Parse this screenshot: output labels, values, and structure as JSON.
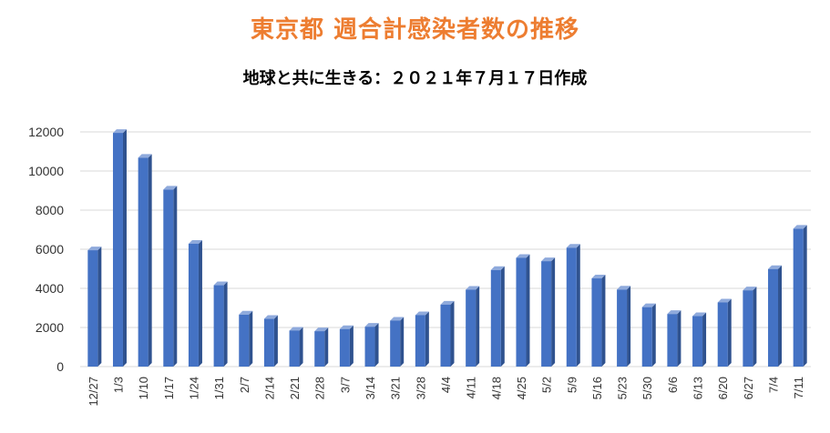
{
  "title": "東京都 週合計感染者数の推移",
  "subtitle": "地球と共に生きる：２０２１年７月１７日作成",
  "colors": {
    "title": "#ed7d31",
    "bar_front": "#4472c4",
    "bar_side": "#2f528f",
    "bar_top": "#8faadc",
    "grid": "#d9d9d9"
  },
  "chart_data": {
    "type": "bar",
    "title": "東京都 週合計感染者数の推移",
    "subtitle": "地球と共に生きる：２０２１年７月１７日作成",
    "xlabel": "",
    "ylabel": "",
    "ylim": [
      0,
      12000
    ],
    "yticks": [
      0,
      2000,
      4000,
      6000,
      8000,
      10000,
      12000
    ],
    "grid": true,
    "categories": [
      "12/27",
      "1/3",
      "1/10",
      "1/17",
      "1/24",
      "1/31",
      "2/7",
      "2/14",
      "2/21",
      "2/28",
      "3/7",
      "3/14",
      "3/21",
      "3/28",
      "4/4",
      "4/11",
      "4/18",
      "4/25",
      "5/2",
      "5/9",
      "5/16",
      "5/23",
      "5/30",
      "6/6",
      "6/13",
      "6/20",
      "6/27",
      "7/4",
      "7/11"
    ],
    "values": [
      5950,
      11950,
      10680,
      9050,
      6280,
      4160,
      2660,
      2440,
      1840,
      1810,
      1920,
      2040,
      2350,
      2630,
      3170,
      3930,
      4940,
      5560,
      5390,
      6080,
      4510,
      3940,
      3040,
      2690,
      2580,
      3280,
      3900,
      4990,
      7050
    ]
  }
}
